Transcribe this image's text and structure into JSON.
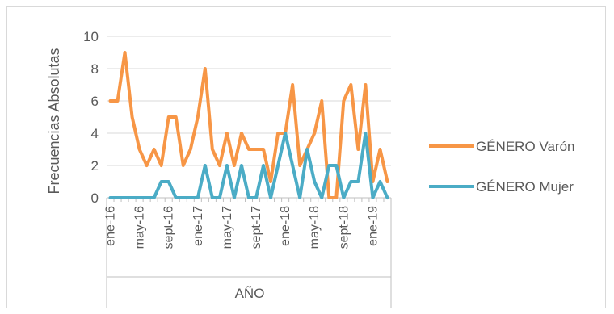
{
  "chart_data": {
    "type": "line",
    "ylabel": "Frecuencias Absolutas",
    "xlabel": "AÑO",
    "ylim": [
      0,
      10
    ],
    "yticks": [
      0,
      2,
      4,
      6,
      8,
      10
    ],
    "grid": true,
    "legend": "right",
    "xtick_labels": [
      {
        "index": 0,
        "label": "ene-16"
      },
      {
        "index": 4,
        "label": "may-16"
      },
      {
        "index": 8,
        "label": "sept-16"
      },
      {
        "index": 12,
        "label": "ene-17"
      },
      {
        "index": 16,
        "label": "may-17"
      },
      {
        "index": 20,
        "label": "sept-17"
      },
      {
        "index": 24,
        "label": "ene-18"
      },
      {
        "index": 28,
        "label": "may-18"
      },
      {
        "index": 32,
        "label": "sept-18"
      },
      {
        "index": 36,
        "label": "ene-19"
      }
    ],
    "series": [
      {
        "name": "GÉNERO Varón",
        "color": "#F79646",
        "values": [
          6,
          6,
          9,
          5,
          3,
          2,
          3,
          2,
          5,
          5,
          2,
          3,
          5,
          8,
          3,
          2,
          4,
          2,
          4,
          3,
          3,
          3,
          1,
          4,
          4,
          7,
          2,
          3,
          4,
          6,
          0,
          0,
          6,
          7,
          3,
          7,
          1,
          3,
          1
        ]
      },
      {
        "name": "GÉNERO Mujer",
        "color": "#4BACC6",
        "values": [
          0,
          0,
          0,
          0,
          0,
          0,
          0,
          1,
          1,
          0,
          0,
          0,
          0,
          2,
          0,
          0,
          2,
          0,
          2,
          0,
          0,
          2,
          0,
          2,
          4,
          2,
          0,
          3,
          1,
          0,
          2,
          2,
          0,
          1,
          1,
          4,
          0,
          1,
          0
        ]
      }
    ]
  }
}
